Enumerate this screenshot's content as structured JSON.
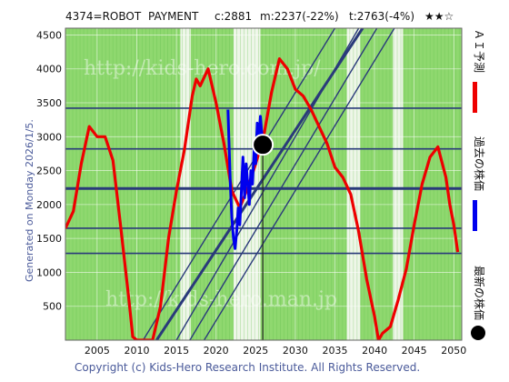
{
  "header": {
    "ticker": "4374=ROBOT",
    "company": "PAYMENT",
    "current": "c:2881",
    "median": "m:2237(-22%)",
    "target": "t:2763(-4%)",
    "stars": "★★☆"
  },
  "side_note": "Generated on Monday 2026/1/5.",
  "copyright": "Copyright (c) Kids-Hero Research Institute. All Rights Reserved.",
  "watermarks": [
    "http://kids-hero.com.jp/",
    "http://kids-hero.man.jp"
  ],
  "legend": {
    "forecast": "ＡＩ予測",
    "past": "過去の株価",
    "latest": "最新の株価"
  },
  "colors": {
    "forecast": "#ee0000",
    "past": "#0000ee",
    "latest": "#000000",
    "band_fill": "#8fd86f",
    "band_light": "#d5f5c5",
    "trend_lines": "#2a3a7a",
    "level_lines": "#2a3a7a"
  },
  "chart_data": {
    "type": "line",
    "title": "",
    "xlabel": "",
    "ylabel": "",
    "xlim": [
      2001,
      2051
    ],
    "ylim": [
      0,
      4600
    ],
    "x_ticks": [
      2005,
      2010,
      2015,
      2020,
      2025,
      2030,
      2035,
      2040,
      2045,
      2050
    ],
    "y_ticks": [
      500,
      1000,
      1500,
      2000,
      2500,
      3000,
      3500,
      4000,
      4500
    ],
    "grid": true,
    "horizontal_levels": [
      1280,
      1650,
      2237,
      2820,
      3420
    ],
    "latest_point": {
      "x": 2025.9,
      "y": 2881
    },
    "trend_lines": [
      {
        "from": [
          2012.5,
          0
        ],
        "to": [
          2038.5,
          4600
        ]
      },
      {
        "from": [
          2010.8,
          0
        ],
        "to": [
          2035.0,
          4600
        ]
      },
      {
        "from": [
          2015.0,
          0
        ],
        "to": [
          2038.0,
          4600
        ]
      },
      {
        "from": [
          2016.7,
          0
        ],
        "to": [
          2040.3,
          4600
        ]
      },
      {
        "from": [
          2018.5,
          0
        ],
        "to": [
          2042.5,
          4600
        ]
      }
    ],
    "series": [
      {
        "name": "ＡＩ予測",
        "x": [
          2001,
          2002,
          2003,
          2004,
          2005,
          2006,
          2007,
          2008,
          2009,
          2009.5,
          2010,
          2011,
          2012,
          2013,
          2014,
          2015,
          2016,
          2017,
          2017.5,
          2018,
          2019,
          2020,
          2021,
          2022,
          2023,
          2024,
          2025,
          2026,
          2027,
          2028,
          2029,
          2030,
          2031,
          2032,
          2033,
          2034,
          2035,
          2036,
          2037,
          2038,
          2039,
          2040,
          2040.5,
          2041,
          2042,
          2043,
          2044,
          2045,
          2046,
          2047,
          2048,
          2049,
          2049.5,
          2050,
          2050.5
        ],
        "y": [
          1650,
          1900,
          2600,
          3150,
          3000,
          3000,
          2650,
          1650,
          600,
          50,
          0,
          0,
          0,
          500,
          1500,
          2200,
          2800,
          3600,
          3850,
          3750,
          4000,
          3500,
          2900,
          2200,
          1950,
          2250,
          2600,
          3000,
          3650,
          4150,
          4000,
          3700,
          3600,
          3400,
          3150,
          2900,
          2550,
          2400,
          2150,
          1600,
          900,
          350,
          0,
          100,
          200,
          600,
          1050,
          1700,
          2300,
          2700,
          2850,
          2400,
          2000,
          1700,
          1300
        ]
      },
      {
        "name": "過去の株価",
        "x": [
          2021.5,
          2021.8,
          2022.0,
          2022.2,
          2022.4,
          2022.6,
          2022.8,
          2023.0,
          2023.2,
          2023.4,
          2023.6,
          2023.8,
          2024.0,
          2024.2,
          2024.4,
          2024.6,
          2024.8,
          2025.0,
          2025.2,
          2025.4,
          2025.6,
          2025.9
        ],
        "y": [
          3400,
          2300,
          1800,
          1500,
          1350,
          1600,
          1950,
          1700,
          2200,
          2700,
          2100,
          2600,
          2300,
          2000,
          2500,
          2300,
          2800,
          2600,
          3200,
          3000,
          3300,
          2881
        ]
      }
    ]
  }
}
